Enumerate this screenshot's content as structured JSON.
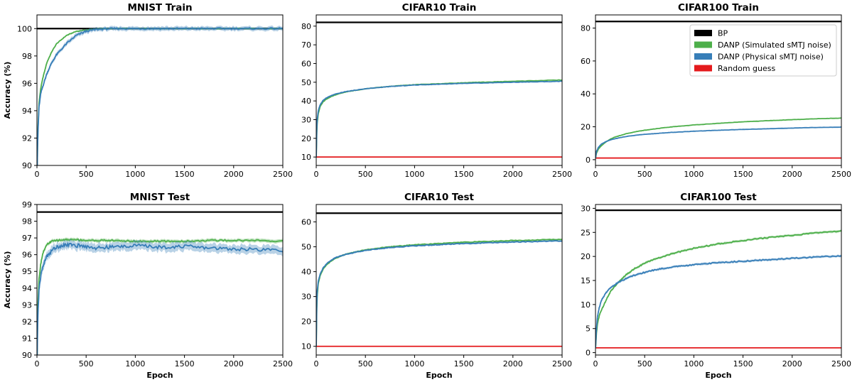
{
  "legend": {
    "placement": "top-right",
    "entries": [
      {
        "label": "BP",
        "color": "#000000"
      },
      {
        "label": "DANP (Simulated sMTJ noise)",
        "color": "#4daf4a"
      },
      {
        "label": "DANP (Physical sMTJ noise)",
        "color": "#377eb8"
      },
      {
        "label": "Random guess",
        "color": "#e41a1c"
      }
    ]
  },
  "colors": {
    "bp": "#000000",
    "sim": "#4daf4a",
    "phys": "#377eb8",
    "random": "#e41a1c"
  },
  "chart_data": [
    {
      "type": "line",
      "title": "MNIST Train",
      "xlabel": "",
      "ylabel": "Accuracy (%)",
      "xlim": [
        0,
        2500
      ],
      "ylim": [
        90,
        101
      ],
      "xticks": [
        "0",
        "500",
        "1000",
        "1500",
        "2000",
        "2500"
      ],
      "yticks": [
        "90",
        "92",
        "94",
        "96",
        "98",
        "100"
      ],
      "grid": false,
      "bp": 100,
      "random": null,
      "series": [
        {
          "key": "sim",
          "x": [
            0,
            5,
            10,
            20,
            40,
            60,
            100,
            150,
            200,
            300,
            400,
            500,
            600,
            700,
            800,
            1000,
            1500,
            2000,
            2500
          ],
          "y": [
            88,
            91,
            92.5,
            94.5,
            95.7,
            96.4,
            97.5,
            98.3,
            98.9,
            99.5,
            99.8,
            99.9,
            99.97,
            100,
            100,
            100,
            100,
            100,
            100
          ],
          "band": 0.06
        },
        {
          "key": "phys",
          "x": [
            0,
            5,
            10,
            20,
            40,
            60,
            100,
            150,
            200,
            300,
            400,
            500,
            600,
            700,
            800,
            1000,
            1500,
            2000,
            2500
          ],
          "y": [
            88,
            91,
            92.3,
            94.2,
            95.3,
            95.8,
            96.7,
            97.5,
            98.1,
            98.9,
            99.5,
            99.8,
            99.93,
            99.98,
            100,
            100,
            100,
            100,
            100
          ],
          "band": 0.18
        }
      ]
    },
    {
      "type": "line",
      "title": "CIFAR10 Train",
      "xlabel": "",
      "ylabel": "",
      "xlim": [
        0,
        2500
      ],
      "ylim": [
        5.5,
        86
      ],
      "xticks": [
        "0",
        "500",
        "1000",
        "1500",
        "2000",
        "2500"
      ],
      "yticks": [
        "10",
        "20",
        "30",
        "40",
        "50",
        "60",
        "70",
        "80"
      ],
      "grid": false,
      "bp": 82,
      "random": 10,
      "series": [
        {
          "key": "sim",
          "x": [
            0,
            5,
            10,
            20,
            40,
            70,
            100,
            150,
            200,
            300,
            500,
            750,
            1000,
            1500,
            2000,
            2500
          ],
          "y": [
            10,
            22,
            28,
            33,
            37,
            39.5,
            40.8,
            42.3,
            43.3,
            44.8,
            46.5,
            47.8,
            48.7,
            49.7,
            50.5,
            51.2
          ],
          "band": 0.3
        },
        {
          "key": "phys",
          "x": [
            0,
            5,
            10,
            20,
            40,
            70,
            100,
            150,
            200,
            300,
            500,
            750,
            1000,
            1500,
            2000,
            2500
          ],
          "y": [
            10,
            24,
            30,
            34.5,
            38,
            40.3,
            41.5,
            42.8,
            43.7,
            45,
            46.5,
            47.7,
            48.5,
            49.4,
            50,
            50.5
          ],
          "band": 0.3
        }
      ]
    },
    {
      "type": "line",
      "title": "CIFAR100 Train",
      "xlabel": "",
      "ylabel": "",
      "xlim": [
        0,
        2500
      ],
      "ylim": [
        -3.5,
        88
      ],
      "xticks": [
        "0",
        "500",
        "1000",
        "1500",
        "2000",
        "2500"
      ],
      "yticks": [
        "0",
        "20",
        "40",
        "60",
        "80"
      ],
      "grid": false,
      "bp": 84,
      "random": 1,
      "series": [
        {
          "key": "sim",
          "x": [
            0,
            10,
            30,
            60,
            100,
            150,
            200,
            300,
            400,
            500,
            750,
            1000,
            1250,
            1500,
            1750,
            2000,
            2250,
            2500
          ],
          "y": [
            1,
            4,
            6.5,
            8.5,
            10.5,
            12.5,
            13.8,
            15.6,
            16.9,
            17.9,
            19.8,
            21.1,
            22.1,
            23,
            23.7,
            24.3,
            24.9,
            25.3
          ],
          "band": 0.2
        },
        {
          "key": "phys",
          "x": [
            0,
            10,
            30,
            60,
            100,
            150,
            200,
            300,
            400,
            500,
            750,
            1000,
            1250,
            1500,
            1750,
            2000,
            2250,
            2500
          ],
          "y": [
            1,
            5,
            7.5,
            9.5,
            10.8,
            12,
            12.8,
            14,
            14.8,
            15.4,
            16.5,
            17.3,
            17.9,
            18.4,
            18.8,
            19.2,
            19.6,
            19.8
          ],
          "band": 0.2
        }
      ]
    },
    {
      "type": "line",
      "title": "MNIST Test",
      "xlabel": "Epoch",
      "ylabel": "Accuracy (%)",
      "xlim": [
        0,
        2500
      ],
      "ylim": [
        90,
        99
      ],
      "xticks": [
        "0",
        "500",
        "1000",
        "1500",
        "2000",
        "2500"
      ],
      "yticks": [
        "90",
        "91",
        "92",
        "93",
        "94",
        "95",
        "96",
        "97",
        "98",
        "99"
      ],
      "grid": false,
      "bp": 98.55,
      "random": null,
      "series": [
        {
          "key": "sim",
          "x": [
            0,
            5,
            10,
            20,
            40,
            60,
            100,
            150,
            200,
            300,
            400,
            500,
            750,
            1000,
            1250,
            1500,
            1750,
            2000,
            2250,
            2500
          ],
          "y": [
            89,
            91.5,
            93,
            94.5,
            95.5,
            96.1,
            96.6,
            96.8,
            96.85,
            96.9,
            96.9,
            96.85,
            96.85,
            96.8,
            96.8,
            96.8,
            96.85,
            96.85,
            96.85,
            96.8
          ],
          "band": 0.12
        },
        {
          "key": "phys",
          "x": [
            0,
            5,
            10,
            20,
            40,
            60,
            100,
            150,
            200,
            250,
            300,
            400,
            500,
            600,
            750,
            1000,
            1250,
            1500,
            1750,
            2000,
            2250,
            2500
          ],
          "y": [
            89,
            91,
            92.4,
            93.8,
            94.8,
            95.3,
            95.9,
            96.25,
            96.45,
            96.55,
            96.6,
            96.55,
            96.5,
            96.4,
            96.45,
            96.55,
            96.45,
            96.5,
            96.4,
            96.35,
            96.3,
            96.25
          ],
          "band": 0.3
        }
      ]
    },
    {
      "type": "line",
      "title": "CIFAR10 Test",
      "xlabel": "Epoch",
      "ylabel": "",
      "xlim": [
        0,
        2500
      ],
      "ylim": [
        6.5,
        67
      ],
      "xticks": [
        "0",
        "500",
        "1000",
        "1500",
        "2000",
        "2500"
      ],
      "yticks": [
        "10",
        "20",
        "30",
        "40",
        "50",
        "60"
      ],
      "grid": false,
      "bp": 63.5,
      "random": 10,
      "series": [
        {
          "key": "sim",
          "x": [
            0,
            5,
            10,
            20,
            40,
            70,
            100,
            150,
            200,
            300,
            500,
            750,
            1000,
            1500,
            2000,
            2500
          ],
          "y": [
            10,
            24,
            30,
            35,
            38.5,
            41,
            42.5,
            44.3,
            45.5,
            47,
            48.8,
            50,
            50.8,
            51.8,
            52.5,
            53
          ],
          "band": 0.4
        },
        {
          "key": "phys",
          "x": [
            0,
            5,
            10,
            20,
            40,
            70,
            100,
            150,
            200,
            300,
            500,
            750,
            1000,
            1500,
            2000,
            2500
          ],
          "y": [
            10,
            26,
            32,
            36,
            39,
            41.5,
            43,
            44.6,
            45.7,
            47,
            48.6,
            49.7,
            50.4,
            51.3,
            51.9,
            52.4
          ],
          "band": 0.4
        }
      ]
    },
    {
      "type": "line",
      "title": "CIFAR100 Test",
      "xlabel": "Epoch",
      "ylabel": "",
      "xlim": [
        0,
        2500
      ],
      "ylim": [
        -0.5,
        30.8
      ],
      "xticks": [
        "0",
        "500",
        "1000",
        "1500",
        "2000",
        "2500"
      ],
      "yticks": [
        "0",
        "5",
        "10",
        "15",
        "20",
        "25",
        "30"
      ],
      "grid": false,
      "bp": 29.6,
      "random": 1,
      "series": [
        {
          "key": "sim",
          "x": [
            0,
            10,
            20,
            40,
            60,
            100,
            150,
            200,
            250,
            300,
            400,
            500,
            600,
            750,
            1000,
            1250,
            1500,
            1750,
            2000,
            2250,
            2500
          ],
          "y": [
            1,
            4,
            6,
            7.8,
            8.8,
            10.6,
            12.6,
            13.9,
            15,
            16,
            17.5,
            18.6,
            19.4,
            20.4,
            21.7,
            22.6,
            23.3,
            23.9,
            24.4,
            24.9,
            25.3
          ],
          "band": 0.3
        },
        {
          "key": "phys",
          "x": [
            0,
            10,
            20,
            40,
            60,
            100,
            150,
            200,
            250,
            300,
            400,
            500,
            600,
            750,
            1000,
            1250,
            1500,
            1750,
            2000,
            2250,
            2500
          ],
          "y": [
            1,
            5,
            7.5,
            9.5,
            10.8,
            12.3,
            13.5,
            14.2,
            14.8,
            15.3,
            16.1,
            16.7,
            17.2,
            17.7,
            18.3,
            18.7,
            19,
            19.3,
            19.6,
            19.9,
            20.1
          ],
          "band": 0.3
        }
      ]
    }
  ]
}
